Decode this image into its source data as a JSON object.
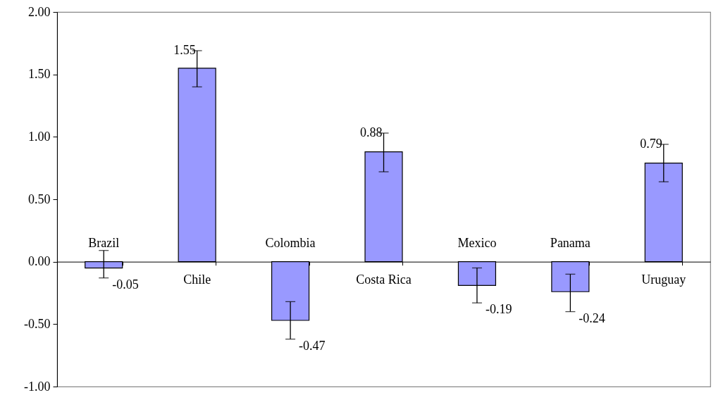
{
  "chart_data": {
    "type": "bar",
    "categories": [
      "Brazil",
      "Chile",
      "Colombia",
      "Costa Rica",
      "Mexico",
      "Panama",
      "Uruguay"
    ],
    "values": [
      -0.05,
      1.55,
      -0.47,
      0.88,
      -0.19,
      -0.24,
      0.79
    ],
    "errors": [
      [
        -0.13,
        0.09
      ],
      [
        1.4,
        1.69
      ],
      [
        -0.62,
        -0.32
      ],
      [
        0.72,
        1.03
      ],
      [
        -0.33,
        -0.05
      ],
      [
        -0.4,
        -0.1
      ],
      [
        0.64,
        0.94
      ]
    ],
    "color": "#9999ff",
    "ylim": [
      -1,
      2
    ],
    "yticks": [
      {
        "value": -1,
        "label": "-1.00"
      },
      {
        "value": -0.5,
        "label": "-0.50"
      },
      {
        "value": 0,
        "label": "0.00"
      },
      {
        "value": 0.5,
        "label": "0.50"
      },
      {
        "value": 1,
        "label": "1.00"
      },
      {
        "value": 1.5,
        "label": "1.50"
      },
      {
        "value": 2,
        "label": "2.00"
      }
    ],
    "data_labels": true
  }
}
